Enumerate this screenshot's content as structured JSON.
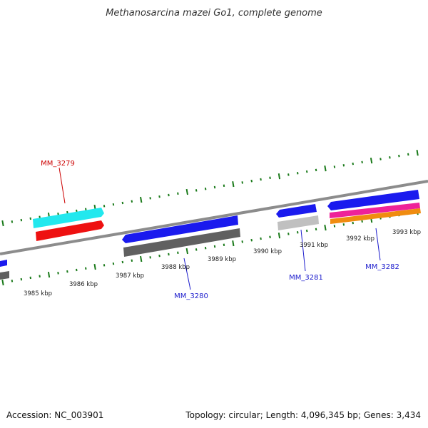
{
  "title": "Methanosarcina mazei Go1, complete genome",
  "colors": {
    "backbone": "#8c8c8c",
    "tick": "#1a7a1a",
    "label_red": "#cc0000",
    "label_blue": "#1a1acc",
    "cds_forward": "#1a1aee",
    "cds_cyan": "#22e8ee",
    "cds_red": "#ee1111",
    "cds_gray_dark": "#606060",
    "cds_gray_light": "#c0c0c0",
    "cds_magenta": "#ee2299",
    "cds_orange": "#f08c10"
  },
  "ticks": [
    {
      "label": "3985 kbp"
    },
    {
      "label": "3986 kbp"
    },
    {
      "label": "3987 kbp"
    },
    {
      "label": "3988 kbp"
    },
    {
      "label": "3989 kbp"
    },
    {
      "label": "3990 kbp"
    },
    {
      "label": "3991 kbp"
    },
    {
      "label": "3992 kbp"
    },
    {
      "label": "3993 kbp"
    }
  ],
  "genes": [
    {
      "name": "MM_3279",
      "color": "red"
    },
    {
      "name": "MM_3280",
      "color": "blue"
    },
    {
      "name": "MM_3281",
      "color": "blue"
    },
    {
      "name": "MM_3282",
      "color": "blue"
    }
  ],
  "footer": {
    "accession": "Accession: NC_003901",
    "summary": "Topology: circular; Length: 4,096,345 bp; Genes: 3,434"
  }
}
